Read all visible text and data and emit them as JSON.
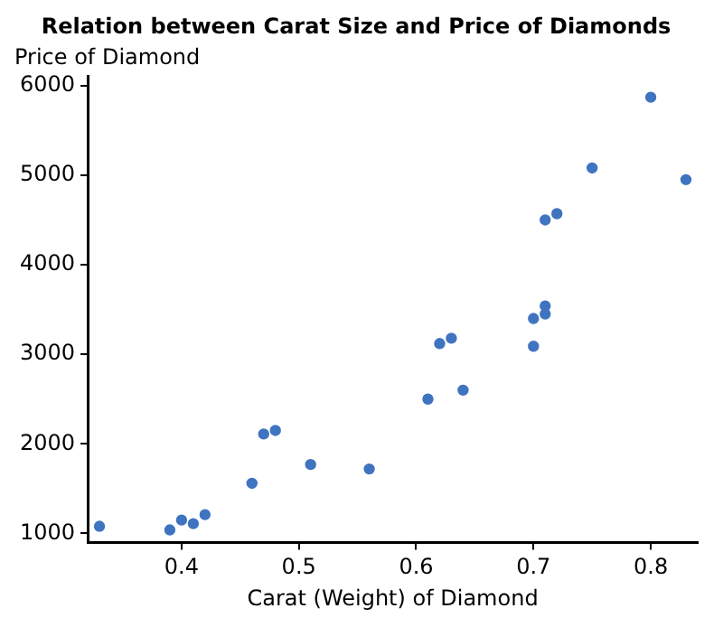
{
  "chart_data": {
    "type": "scatter",
    "title": "Relation between Carat Size and Price of Diamonds",
    "xlabel": "Carat (Weight) of Diamond",
    "ylabel": "Price of Diamond",
    "x": [
      0.33,
      0.39,
      0.4,
      0.41,
      0.42,
      0.46,
      0.47,
      0.48,
      0.51,
      0.56,
      0.61,
      0.62,
      0.63,
      0.64,
      0.7,
      0.7,
      0.71,
      0.71,
      0.71,
      0.72,
      0.75,
      0.8,
      0.83
    ],
    "series": [
      {
        "color": "#3f74c0",
        "values": [
          1080,
          1040,
          1150,
          1110,
          1210,
          1560,
          2110,
          2150,
          1770,
          1720,
          2500,
          3120,
          3180,
          2600,
          3090,
          3400,
          3450,
          3540,
          4500,
          4570,
          5080,
          5870,
          4950
        ]
      }
    ],
    "xlim": [
      0.32,
      0.84
    ],
    "ylim": [
      900,
      6100
    ],
    "xticks": [
      0.4,
      0.5,
      0.6,
      0.7,
      0.8
    ],
    "yticks": [
      1000,
      2000,
      3000,
      4000,
      5000,
      6000
    ],
    "grid": false,
    "legend": false,
    "marker": "circle"
  }
}
